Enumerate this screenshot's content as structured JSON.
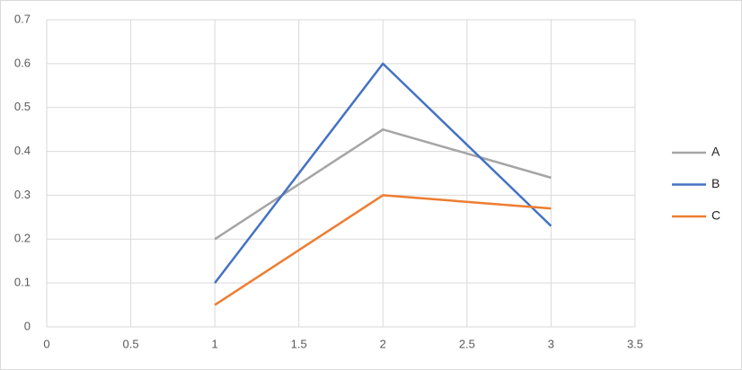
{
  "chart_data": {
    "type": "line",
    "x": [
      1,
      2,
      3
    ],
    "series": [
      {
        "name": "A",
        "color": "#a5a5a5",
        "values": [
          0.2,
          0.45,
          0.34
        ]
      },
      {
        "name": "B",
        "color": "#4472c4",
        "values": [
          0.1,
          0.6,
          0.23
        ]
      },
      {
        "name": "C",
        "color": "#ed7d31",
        "values": [
          0.05,
          0.3,
          0.27
        ]
      }
    ],
    "xlim": [
      0,
      3.5
    ],
    "xticks": [
      0,
      0.5,
      1,
      1.5,
      2,
      2.5,
      3,
      3.5
    ],
    "ylim": [
      0,
      0.7
    ],
    "yticks": [
      0,
      0.1,
      0.2,
      0.3,
      0.4,
      0.5,
      0.6,
      0.7
    ],
    "grid": true,
    "legend": "right"
  }
}
